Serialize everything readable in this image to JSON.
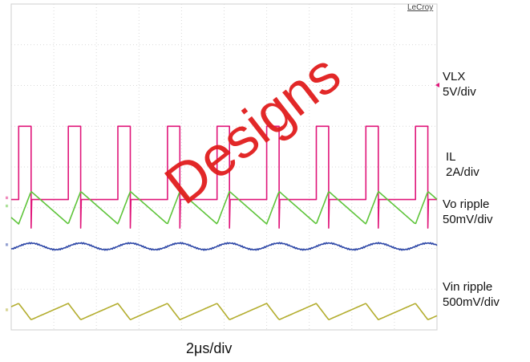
{
  "brand": "LeCroy",
  "watermark": "Designs",
  "time_scale": "2μs/div",
  "channels": [
    {
      "name": "VLX",
      "scale": "5V/div",
      "color": "#e0167a"
    },
    {
      "name": "IL",
      "scale": "2A/div",
      "color": "#5ec43a"
    },
    {
      "name": "Vo ripple",
      "scale": "50mV/div",
      "color": "#2b45a6"
    },
    {
      "name": "Vin ripple",
      "scale": "500mV/div",
      "color": "#b3ad2e"
    }
  ],
  "chart_data": {
    "type": "line",
    "xlabel": "2μs/div",
    "grid": true,
    "divisions": {
      "x": 10,
      "y": 8
    },
    "x_range_us": [
      0,
      20
    ],
    "switching_period_us": 2.33,
    "series": [
      {
        "name": "VLX",
        "waveform": "square",
        "period_us": 2.33,
        "duty": 0.25,
        "high_div": 5.0,
        "low_div": 3.2
      },
      {
        "name": "IL",
        "waveform": "triangle",
        "period_us": 2.33,
        "min_div": 2.6,
        "max_div": 3.4
      },
      {
        "name": "Vo ripple",
        "waveform": "sine",
        "period_us": 2.33,
        "center_div": 2.05,
        "amplitude_div": 0.08
      },
      {
        "name": "Vin ripple",
        "waveform": "sawtooth",
        "period_us": 2.33,
        "min_div": 0.25,
        "max_div": 0.65
      }
    ]
  }
}
